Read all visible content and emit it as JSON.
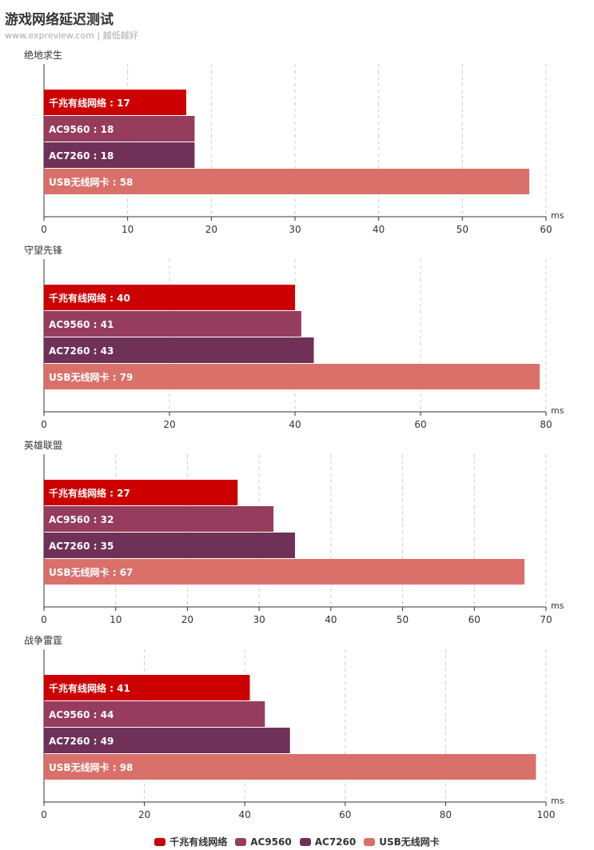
{
  "header": {
    "title": "游戏网络延迟测试",
    "subtitle": "www.expreview.com | 越低越好"
  },
  "legend": {
    "items": [
      {
        "name": "千兆有线网络",
        "color": "#cc0000"
      },
      {
        "name": "AC9560",
        "color": "#963c5c"
      },
      {
        "name": "AC7260",
        "color": "#6f3158"
      },
      {
        "name": "USB无线网卡",
        "color": "#d9716a"
      }
    ]
  },
  "chart_data": [
    {
      "type": "bar",
      "title": "绝地求生",
      "unit": "ms",
      "categories": [
        "千兆有线网络",
        "AC9560",
        "AC7260",
        "USB无线网卡"
      ],
      "values": [
        17,
        18,
        18,
        58
      ],
      "xlim": [
        0,
        60
      ],
      "ticks": [
        0,
        10,
        20,
        30,
        40,
        50,
        60
      ]
    },
    {
      "type": "bar",
      "title": "守望先锋",
      "unit": "ms",
      "categories": [
        "千兆有线网络",
        "AC9560",
        "AC7260",
        "USB无线网卡"
      ],
      "values": [
        40,
        41,
        43,
        79
      ],
      "xlim": [
        0,
        80
      ],
      "ticks": [
        0,
        20,
        40,
        60,
        80
      ]
    },
    {
      "type": "bar",
      "title": "英雄联盟",
      "unit": "ms",
      "categories": [
        "千兆有线网络",
        "AC9560",
        "AC7260",
        "USB无线网卡"
      ],
      "values": [
        27,
        32,
        35,
        67
      ],
      "xlim": [
        0,
        70
      ],
      "ticks": [
        0,
        10,
        20,
        30,
        40,
        50,
        60,
        70
      ]
    },
    {
      "type": "bar",
      "title": "战争雷霆",
      "unit": "ms",
      "categories": [
        "千兆有线网络",
        "AC9560",
        "AC7260",
        "USB无线网卡"
      ],
      "values": [
        41,
        44,
        49,
        98
      ],
      "xlim": [
        0,
        100
      ],
      "ticks": [
        0,
        20,
        40,
        60,
        80,
        100
      ]
    }
  ]
}
